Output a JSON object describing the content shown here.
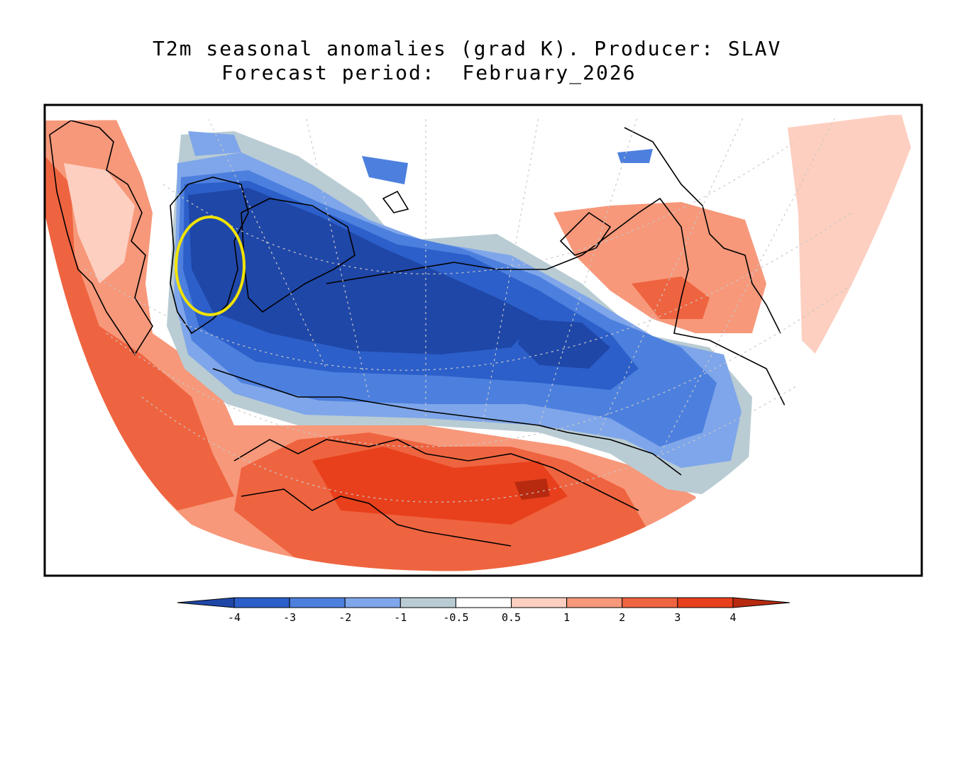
{
  "title": {
    "line1": "T2m seasonal anomalies (grad K). Producer: SLAV",
    "line2": "Forecast period:  February_2026"
  },
  "colorbar": {
    "labels": [
      "-4",
      "-3",
      "-2",
      "-1",
      "-0.5",
      "0.5",
      "1",
      "2",
      "3",
      "4"
    ],
    "colors": [
      "#1f47a8",
      "#2c5fc9",
      "#4d80de",
      "#7fa6ea",
      "#b9ccd3",
      "#ffffff",
      "#fdcfc0",
      "#f7987a",
      "#ef6440",
      "#e8401c",
      "#b72a10"
    ]
  },
  "colors": {
    "frame": "#000000",
    "highlight_ring": "#f2e300",
    "grid": "#c8c8c8"
  }
}
